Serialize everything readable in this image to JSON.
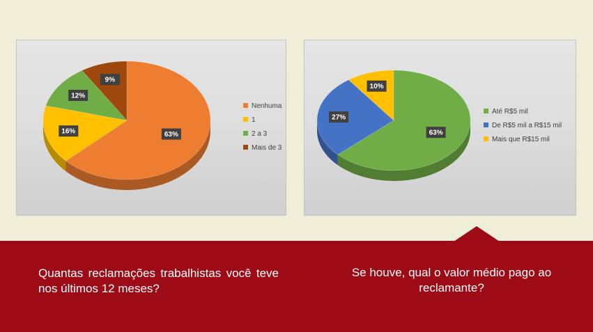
{
  "chart_data": [
    {
      "type": "pie",
      "legend": "right",
      "categories": [
        "Nenhuma",
        "1",
        "2 a 3",
        "Mais de 3"
      ],
      "values": [
        63,
        16,
        12,
        9
      ],
      "labels": [
        "63%",
        "16%",
        "12%",
        "9%"
      ],
      "colors": [
        "#ed7d31",
        "#ffc000",
        "#70ad47",
        "#9e480e"
      ],
      "question": "Quantas reclamações trabalhistas você teve nos últimos 12 meses?"
    },
    {
      "type": "pie",
      "legend": "right",
      "categories": [
        "Até R$5 mil",
        "De R$5 mil a R$15 mil",
        "Mais que R$15 mil"
      ],
      "values": [
        63,
        27,
        10
      ],
      "labels": [
        "63%",
        "27%",
        "10%"
      ],
      "colors": [
        "#70ad47",
        "#4472c4",
        "#ffc000"
      ],
      "question": "Se houve, qual o valor médio pago ao reclamante?"
    }
  ],
  "footer": {
    "color": "#9d0b16"
  }
}
